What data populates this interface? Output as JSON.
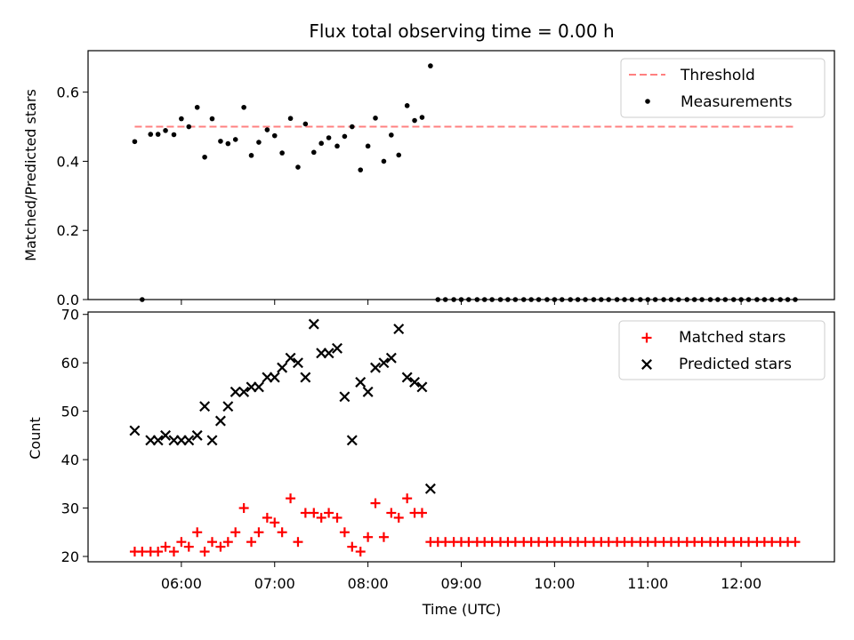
{
  "chart_data": [
    {
      "type": "scatter",
      "title": "Flux total observing time = 0.00 h",
      "ylabel": "Matched/Predicted stars",
      "xlabel": "",
      "x_unit": "decimal hours UTC",
      "xlim": [
        5.0,
        13.0
      ],
      "ylim": [
        0.0,
        0.72
      ],
      "yticks": [
        0.0,
        0.2,
        0.4,
        0.6
      ],
      "ytick_labels": [
        "0.0",
        "0.2",
        "0.4",
        "0.6"
      ],
      "grid": false,
      "legend_position": "top-right",
      "threshold": {
        "name": "Threshold",
        "x": [
          5.5,
          12.58
        ],
        "y": 0.5,
        "color": "#ff8080",
        "style": "dashed"
      },
      "series": [
        {
          "name": "Measurements",
          "marker": "dot",
          "color": "#000000",
          "x": [
            5.5,
            5.58,
            5.67,
            5.75,
            5.83,
            5.92,
            6.0,
            6.08,
            6.17,
            6.25,
            6.33,
            6.42,
            6.5,
            6.58,
            6.67,
            6.75,
            6.83,
            6.92,
            7.0,
            7.08,
            7.17,
            7.25,
            7.33,
            7.42,
            7.5,
            7.58,
            7.67,
            7.75,
            7.83,
            7.92,
            8.0,
            8.08,
            8.17,
            8.25,
            8.33,
            8.42,
            8.5,
            8.58,
            8.67,
            8.75,
            8.83,
            8.92,
            9.0,
            9.08,
            9.17,
            9.25,
            9.33,
            9.42,
            9.5,
            9.58,
            9.67,
            9.75,
            9.83,
            9.92,
            10.0,
            10.08,
            10.17,
            10.25,
            10.33,
            10.42,
            10.5,
            10.58,
            10.67,
            10.75,
            10.83,
            10.92,
            11.0,
            11.08,
            11.17,
            11.25,
            11.33,
            11.42,
            11.5,
            11.58,
            11.67,
            11.75,
            11.83,
            11.92,
            12.0,
            12.08,
            12.17,
            12.25,
            12.33,
            12.42,
            12.5,
            12.58
          ],
          "y": [
            0.457,
            0.0,
            0.478,
            0.478,
            0.489,
            0.477,
            0.523,
            0.5,
            0.556,
            0.412,
            0.523,
            0.458,
            0.451,
            0.463,
            0.556,
            0.417,
            0.455,
            0.491,
            0.474,
            0.424,
            0.524,
            0.383,
            0.508,
            0.426,
            0.452,
            0.468,
            0.444,
            0.472,
            0.5,
            0.375,
            0.444,
            0.525,
            0.4,
            0.476,
            0.418,
            0.561,
            0.518,
            0.527,
            0.676,
            0,
            0,
            0,
            0,
            0,
            0,
            0,
            0,
            0,
            0,
            0,
            0,
            0,
            0,
            0,
            0,
            0,
            0,
            0,
            0,
            0,
            0,
            0,
            0,
            0,
            0,
            0,
            0,
            0,
            0,
            0,
            0,
            0,
            0,
            0,
            0,
            0,
            0,
            0,
            0,
            0,
            0,
            0,
            0,
            0,
            0,
            0
          ]
        }
      ]
    },
    {
      "type": "scatter",
      "title": "",
      "xlabel": "Time (UTC)",
      "ylabel": "Count",
      "x_unit": "decimal hours UTC",
      "xlim": [
        5.0,
        13.0
      ],
      "ylim": [
        18.9,
        70.5
      ],
      "xticks": [
        6,
        7,
        8,
        9,
        10,
        11,
        12
      ],
      "xtick_labels": [
        "06:00",
        "07:00",
        "08:00",
        "09:00",
        "10:00",
        "11:00",
        "12:00"
      ],
      "yticks": [
        20,
        30,
        40,
        50,
        60,
        70
      ],
      "ytick_labels": [
        "20",
        "30",
        "40",
        "50",
        "60",
        "70"
      ],
      "grid": false,
      "legend_position": "top-right",
      "series": [
        {
          "name": "Matched stars",
          "marker": "plus",
          "color": "#ff0000",
          "x": [
            5.5,
            5.58,
            5.67,
            5.75,
            5.83,
            5.92,
            6.0,
            6.08,
            6.17,
            6.25,
            6.33,
            6.42,
            6.5,
            6.58,
            6.67,
            6.75,
            6.83,
            6.92,
            7.0,
            7.08,
            7.17,
            7.25,
            7.33,
            7.42,
            7.5,
            7.58,
            7.67,
            7.75,
            7.83,
            7.92,
            8.0,
            8.08,
            8.17,
            8.25,
            8.33,
            8.42,
            8.5,
            8.58,
            8.67,
            8.75,
            8.83,
            8.92,
            9.0,
            9.08,
            9.17,
            9.25,
            9.33,
            9.42,
            9.5,
            9.58,
            9.67,
            9.75,
            9.83,
            9.92,
            10.0,
            10.08,
            10.17,
            10.25,
            10.33,
            10.42,
            10.5,
            10.58,
            10.67,
            10.75,
            10.83,
            10.92,
            11.0,
            11.08,
            11.17,
            11.25,
            11.33,
            11.42,
            11.5,
            11.58,
            11.67,
            11.75,
            11.83,
            11.92,
            12.0,
            12.08,
            12.17,
            12.25,
            12.33,
            12.42,
            12.5,
            12.58
          ],
          "y": [
            21,
            21,
            21,
            21,
            22,
            21,
            23,
            22,
            25,
            21,
            23,
            22,
            23,
            25,
            30,
            23,
            25,
            28,
            27,
            25,
            32,
            23,
            29,
            29,
            28,
            29,
            28,
            25,
            22,
            21,
            24,
            31,
            24,
            29,
            28,
            32,
            29,
            29,
            23,
            23,
            23,
            23,
            23,
            23,
            23,
            23,
            23,
            23,
            23,
            23,
            23,
            23,
            23,
            23,
            23,
            23,
            23,
            23,
            23,
            23,
            23,
            23,
            23,
            23,
            23,
            23,
            23,
            23,
            23,
            23,
            23,
            23,
            23,
            23,
            23,
            23,
            23,
            23,
            23,
            23,
            23,
            23,
            23,
            23,
            23,
            23
          ]
        },
        {
          "name": "Predicted stars",
          "marker": "x",
          "color": "#000000",
          "x": [
            5.5,
            5.67,
            5.75,
            5.83,
            5.92,
            6.0,
            6.08,
            6.17,
            6.25,
            6.33,
            6.42,
            6.5,
            6.58,
            6.67,
            6.75,
            6.83,
            6.92,
            7.0,
            7.08,
            7.17,
            7.25,
            7.33,
            7.42,
            7.5,
            7.58,
            7.67,
            7.75,
            7.83,
            7.92,
            8.0,
            8.08,
            8.17,
            8.25,
            8.33,
            8.42,
            8.5,
            8.58,
            8.67
          ],
          "y": [
            46,
            44,
            44,
            45,
            44,
            44,
            44,
            45,
            51,
            44,
            48,
            51,
            54,
            54,
            55,
            55,
            57,
            57,
            59,
            61,
            60,
            57,
            68,
            62,
            62,
            63,
            53,
            44,
            56,
            54,
            59,
            60,
            61,
            67,
            57,
            56,
            55,
            34
          ]
        }
      ]
    }
  ]
}
